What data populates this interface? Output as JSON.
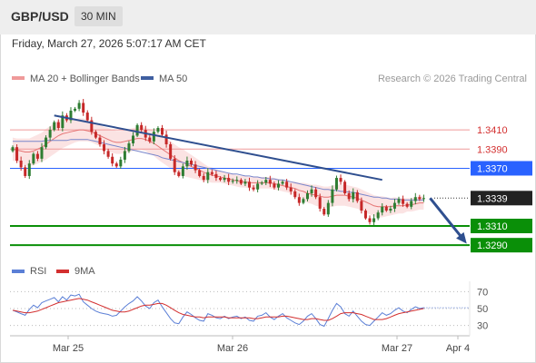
{
  "header": {
    "pair": "GBP/USD",
    "timeframe": "30 MIN",
    "datetime": "Friday, March 27, 2026 5:07:17 AM CET"
  },
  "legend": {
    "ma20_label": "MA 20 + Bollinger Bands",
    "ma50_label": "MA 50",
    "credit": "Research © 2026 Trading Central",
    "rsi_label": "RSI",
    "rsi_ma_label": "9MA"
  },
  "colors": {
    "up": "#2e7d32",
    "down": "#c62828",
    "ma20": "#e57373",
    "ma50": "#3f51b5",
    "band_fill": "#fbe3e3",
    "trend": "#2f4f8f",
    "support": "#0a8f08",
    "resistance": "#ef9a9a",
    "pivot": "#2962ff",
    "rsi": "#5b7fd6",
    "rsi_ma": "#d32f2f"
  },
  "chart_data": {
    "type": "candlestick",
    "x_labels": [
      "Mar 25",
      "Mar 26",
      "Mar 27",
      "Apr 4"
    ],
    "current_price": 1.3339,
    "levels": [
      {
        "value": 1.341,
        "label": "1.3410",
        "role": "resistance"
      },
      {
        "value": 1.339,
        "label": "1.3390",
        "role": "resistance"
      },
      {
        "value": 1.337,
        "label": "1.3370",
        "role": "pivot"
      },
      {
        "value": 1.3339,
        "label": "1.3339",
        "role": "last"
      },
      {
        "value": 1.331,
        "label": "1.3310",
        "role": "support"
      },
      {
        "value": 1.329,
        "label": "1.3290",
        "role": "support"
      }
    ],
    "ylim": [
      1.3276,
      1.3446
    ],
    "closes": [
      1.3392,
      1.3378,
      1.3371,
      1.3362,
      1.3375,
      1.3385,
      1.338,
      1.3392,
      1.3402,
      1.341,
      1.3418,
      1.3412,
      1.3425,
      1.342,
      1.343,
      1.3432,
      1.3438,
      1.3428,
      1.342,
      1.3408,
      1.3402,
      1.3395,
      1.3388,
      1.3382,
      1.3375,
      1.3372,
      1.3379,
      1.3388,
      1.3396,
      1.3404,
      1.3415,
      1.341,
      1.3402,
      1.3398,
      1.3408,
      1.3412,
      1.3405,
      1.3395,
      1.338,
      1.3366,
      1.3362,
      1.3372,
      1.3378,
      1.3374,
      1.3368,
      1.3362,
      1.3358,
      1.3366,
      1.3364,
      1.336,
      1.3358,
      1.336,
      1.3356,
      1.3357,
      1.3358,
      1.3354,
      1.3356,
      1.335,
      1.3348,
      1.3354,
      1.3355,
      1.3358,
      1.3354,
      1.335,
      1.3354,
      1.3356,
      1.335,
      1.3346,
      1.334,
      1.3334,
      1.3338,
      1.3344,
      1.3348,
      1.334,
      1.3328,
      1.3322,
      1.3334,
      1.3348,
      1.336,
      1.3356,
      1.3344,
      1.3338,
      1.3345,
      1.3336,
      1.3326,
      1.3318,
      1.3314,
      1.3318,
      1.3324,
      1.333,
      1.3326,
      1.3328,
      1.3334,
      1.3338,
      1.3333,
      1.333,
      1.3336,
      1.334,
      1.3338,
      1.3339
    ],
    "ma20": [
      1.339,
      1.3389,
      1.3388,
      1.3387,
      1.3387,
      1.3388,
      1.339,
      1.3392,
      1.3395,
      1.3398,
      1.3401,
      1.3404,
      1.3406,
      1.3407,
      1.3408,
      1.3409,
      1.341,
      1.341,
      1.3409,
      1.3408,
      1.3406,
      1.3404,
      1.3402,
      1.34,
      1.3398,
      1.3397,
      1.3397,
      1.3398,
      1.3399,
      1.34,
      1.3401,
      1.3401,
      1.34,
      1.3398,
      1.3396,
      1.3393,
      1.339,
      1.3387,
      1.3384,
      1.3381,
      1.3378,
      1.3376,
      1.3374,
      1.3372,
      1.337,
      1.3368,
      1.3366,
      1.3364,
      1.3363,
      1.3362,
      1.3361,
      1.336,
      1.3359,
      1.3358,
      1.3357,
      1.3356,
      1.3356,
      1.3355,
      1.3355,
      1.3355,
      1.3355,
      1.3355,
      1.3355,
      1.3354,
      1.3353,
      1.3352,
      1.3351,
      1.335,
      1.3349,
      1.3347,
      1.3346,
      1.3344,
      1.3343,
      1.3342,
      1.3341,
      1.334,
      1.334,
      1.3341,
      1.3342,
      1.3342,
      1.3342,
      1.3341,
      1.334,
      1.3339,
      1.3337,
      1.3335,
      1.3333,
      1.3331,
      1.333,
      1.333,
      1.333,
      1.333,
      1.3331,
      1.3331,
      1.3331,
      1.3332,
      1.3332,
      1.3333,
      1.3334,
      1.3334
    ],
    "ma50": [
      1.3398,
      1.3398,
      1.3398,
      1.3398,
      1.3398,
      1.3398,
      1.3398,
      1.3398,
      1.3399,
      1.3399,
      1.3399,
      1.3399,
      1.3399,
      1.3399,
      1.34,
      1.34,
      1.34,
      1.34,
      1.34,
      1.3399,
      1.3398,
      1.3397,
      1.3396,
      1.3395,
      1.3394,
      1.3393,
      1.3392,
      1.3391,
      1.339,
      1.3389,
      1.3388,
      1.3387,
      1.3386,
      1.3385,
      1.3384,
      1.3383,
      1.3381,
      1.338,
      1.3379,
      1.3378,
      1.3377,
      1.3376,
      1.3375,
      1.3374,
      1.3373,
      1.3372,
      1.3371,
      1.337,
      1.3369,
      1.3368,
      1.3367,
      1.3366,
      1.3365,
      1.3364,
      1.3364,
      1.3363,
      1.3362,
      1.3362,
      1.3361,
      1.3361,
      1.336,
      1.336,
      1.3359,
      1.3359,
      1.3358,
      1.3358,
      1.3357,
      1.3356,
      1.3355,
      1.3354,
      1.3353,
      1.3352,
      1.3351,
      1.335,
      1.3349,
      1.3348,
      1.3348,
      1.3347,
      1.3347,
      1.3346,
      1.3346,
      1.3345,
      1.3345,
      1.3344,
      1.3343,
      1.3342,
      1.3341,
      1.334,
      1.334,
      1.3339,
      1.3339,
      1.3338,
      1.3338,
      1.3338,
      1.3337,
      1.3337,
      1.3337,
      1.3337,
      1.3337,
      1.3337
    ],
    "band_width": [
      12,
      12,
      13,
      14,
      14,
      15,
      15,
      15,
      16,
      16,
      16,
      16,
      15,
      14,
      13,
      12,
      12,
      12,
      11,
      11,
      11,
      11,
      11,
      12,
      12,
      12,
      12,
      12,
      12,
      12,
      12,
      12,
      12,
      13,
      13,
      14,
      14,
      14,
      14,
      14,
      14,
      14,
      13,
      12,
      11,
      10,
      9,
      8,
      8,
      7,
      6,
      6,
      6,
      6,
      6,
      6,
      6,
      6,
      6,
      6,
      6,
      6,
      6,
      6,
      6,
      6,
      6,
      6,
      7,
      8,
      9,
      10,
      10,
      11,
      11,
      11,
      11,
      11,
      11,
      11,
      11,
      11,
      11,
      11,
      11,
      11,
      11,
      11,
      11,
      11,
      10,
      9,
      9,
      8,
      8,
      7,
      7,
      7,
      7,
      7
    ],
    "trendline": {
      "from": {
        "index": 10,
        "value": 1.3425
      },
      "to": {
        "index": 89,
        "value": 1.3358
      }
    },
    "forecast": {
      "from": 1.3339,
      "to": 1.3296
    },
    "rsi": {
      "ticks": [
        70,
        50,
        30
      ],
      "ylim": [
        22,
        78
      ],
      "values": [
        48,
        46,
        44,
        42,
        49,
        54,
        51,
        57,
        59,
        61,
        63,
        58,
        64,
        60,
        66,
        65,
        67,
        58,
        54,
        50,
        47,
        45,
        44,
        43,
        41,
        42,
        47,
        52,
        56,
        59,
        64,
        59,
        53,
        50,
        57,
        60,
        52,
        45,
        38,
        33,
        32,
        40,
        46,
        43,
        39,
        36,
        35,
        44,
        42,
        39,
        38,
        41,
        38,
        40,
        41,
        38,
        40,
        36,
        35,
        41,
        42,
        45,
        40,
        37,
        41,
        44,
        39,
        36,
        33,
        31,
        35,
        41,
        44,
        38,
        31,
        29,
        38,
        48,
        56,
        52,
        44,
        41,
        47,
        41,
        35,
        31,
        30,
        35,
        40,
        45,
        42,
        44,
        48,
        51,
        47,
        45,
        49,
        52,
        50,
        51
      ],
      "ma": [
        48,
        47,
        46,
        45,
        45,
        46,
        47,
        49,
        51,
        53,
        55,
        57,
        58,
        59,
        60,
        61,
        62,
        61,
        60,
        58,
        56,
        54,
        52,
        50,
        48,
        47,
        46,
        46,
        47,
        49,
        51,
        53,
        54,
        54,
        55,
        56,
        56,
        54,
        51,
        48,
        45,
        43,
        42,
        41,
        40,
        40,
        39,
        40,
        40,
        40,
        40,
        40,
        39,
        39,
        39,
        39,
        39,
        39,
        38,
        38,
        39,
        40,
        40,
        40,
        40,
        41,
        41,
        40,
        39,
        38,
        37,
        37,
        38,
        38,
        37,
        36,
        36,
        38,
        41,
        44,
        45,
        45,
        45,
        44,
        43,
        41,
        39,
        37,
        37,
        37,
        38,
        40,
        42,
        44,
        45,
        46,
        47,
        48,
        49,
        50
      ]
    }
  }
}
